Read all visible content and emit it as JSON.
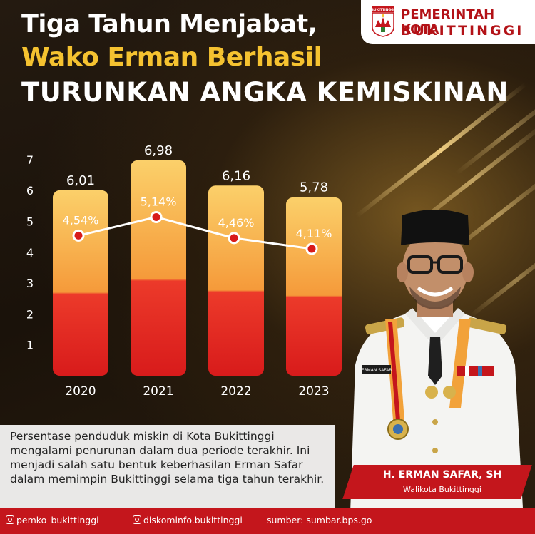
{
  "logo": {
    "emblem_text": "BUKITTINGGI",
    "line1": "PEMERINTAH KOTA",
    "line2": "BUKITTINGGI"
  },
  "headline": {
    "line1": "Tiga Tahun Menjabat,",
    "line2": "Wako Erman Berhasil",
    "line3": "TURUNKAN ANGKA KEMISKINAN"
  },
  "chart_data": {
    "type": "bar",
    "categories": [
      "2020",
      "2021",
      "2022",
      "2023"
    ],
    "series": [
      {
        "kind": "bar",
        "values": [
          6.01,
          6.98,
          6.16,
          5.78
        ],
        "labels": [
          "6,01",
          "6,98",
          "6,16",
          "5,78"
        ]
      },
      {
        "kind": "line",
        "values": [
          4.54,
          5.14,
          4.46,
          4.11
        ],
        "labels": [
          "4,54%",
          "5,14%",
          "4,46%",
          "4,11%"
        ]
      }
    ],
    "yticks": [
      "1",
      "2",
      "3",
      "4",
      "5",
      "6",
      "7"
    ],
    "ylim": [
      0,
      7
    ],
    "grid": false,
    "colors": {
      "bar_top": "#f8c35a",
      "bar_bottom": "#e32222",
      "line": "#ffffff"
    }
  },
  "description": "Persentase penduduk miskin di Kota Bukittinggi mengalami penurunan dalam dua periode terakhir. Ini menjadi salah satu bentuk keberhasilan Erman Safar dalam memimpin Bukittinggi selama tiga tahun terakhir.",
  "person": {
    "name": "H. ERMAN SAFAR, SH",
    "role": "Walikota Bukittinggi",
    "nametag": "ERMAN SAFAR"
  },
  "footer": {
    "ig1": "pemko_bukittinggi",
    "ig2": "diskominfo.bukittinggi",
    "source": "sumber: sumbar.bps.go"
  },
  "icons": [
    "instagram-icon",
    "city-emblem-icon"
  ],
  "colors": {
    "brand_red": "#c4161c",
    "gold": "#f5c230"
  }
}
